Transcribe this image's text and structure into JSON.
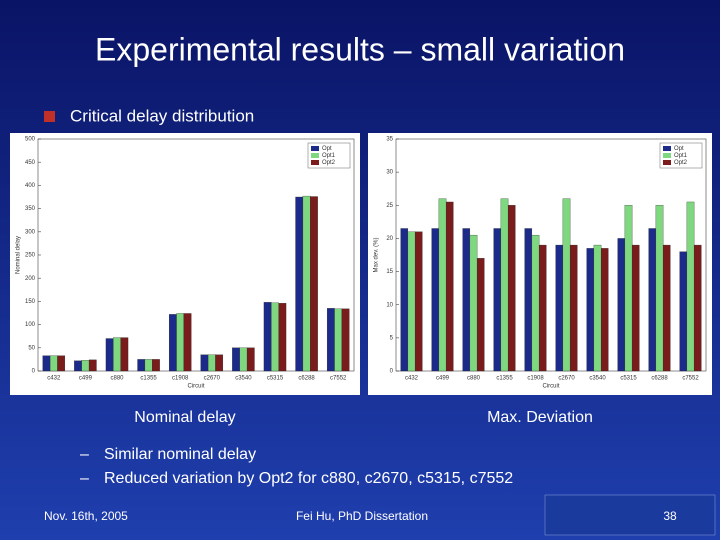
{
  "slide": {
    "title": "Experimental results – small variation",
    "bullet": "Critical delay distribution",
    "sub_bullets": [
      "Similar nominal delay",
      "Reduced variation by Opt2 for c880, c2670, c5315, c7552"
    ],
    "footer_left": "Nov. 16th, 2005",
    "footer_center": "Fei Hu, PhD Dissertation",
    "page_number": "38"
  },
  "chart_data": [
    {
      "type": "bar",
      "title": "Nominal delay",
      "x_label": "Circuit",
      "y_label": "Nominal delay",
      "categories": [
        "c432",
        "c499",
        "c880",
        "c1355",
        "c1908",
        "c2670",
        "c3540",
        "c5315",
        "c6288",
        "c7552"
      ],
      "series": [
        {
          "name": "Opt",
          "color": "#1c2a8a",
          "values": [
            33,
            22,
            70,
            25,
            122,
            35,
            50,
            148,
            375,
            135
          ]
        },
        {
          "name": "Opt1",
          "color": "#7fd87f",
          "values": [
            33,
            23,
            72,
            25,
            124,
            35,
            50,
            147,
            377,
            134
          ]
        },
        {
          "name": "Opt2",
          "color": "#7a1c1c",
          "values": [
            33,
            24,
            72,
            25,
            124,
            35,
            50,
            146,
            376,
            134
          ]
        }
      ],
      "ylim": [
        0,
        500
      ],
      "yticks": [
        0,
        50,
        100,
        150,
        200,
        250,
        300,
        350,
        400,
        450,
        500
      ],
      "legend": "upper right"
    },
    {
      "type": "bar",
      "title": "Max. Deviation",
      "x_label": "Circuit",
      "y_label": "Max dev. (%)",
      "categories": [
        "c432",
        "c499",
        "c880",
        "c1355",
        "c1908",
        "c2670",
        "c3540",
        "c5315",
        "c6288",
        "c7552"
      ],
      "series": [
        {
          "name": "Opt",
          "color": "#1c2a8a",
          "values": [
            21.5,
            21.5,
            21.5,
            21.5,
            21.5,
            19,
            18.5,
            20,
            21.5,
            18
          ]
        },
        {
          "name": "Opt1",
          "color": "#7fd87f",
          "values": [
            21,
            26,
            20.5,
            26,
            20.5,
            26,
            19,
            25,
            25,
            25.5
          ]
        },
        {
          "name": "Opt2",
          "color": "#7a1c1c",
          "values": [
            21,
            25.5,
            17,
            25,
            19,
            19,
            18.5,
            19,
            19,
            19
          ]
        }
      ],
      "ylim": [
        0,
        35
      ],
      "yticks": [
        0,
        5,
        10,
        15,
        20,
        25,
        30,
        35
      ],
      "legend": "upper right"
    }
  ]
}
